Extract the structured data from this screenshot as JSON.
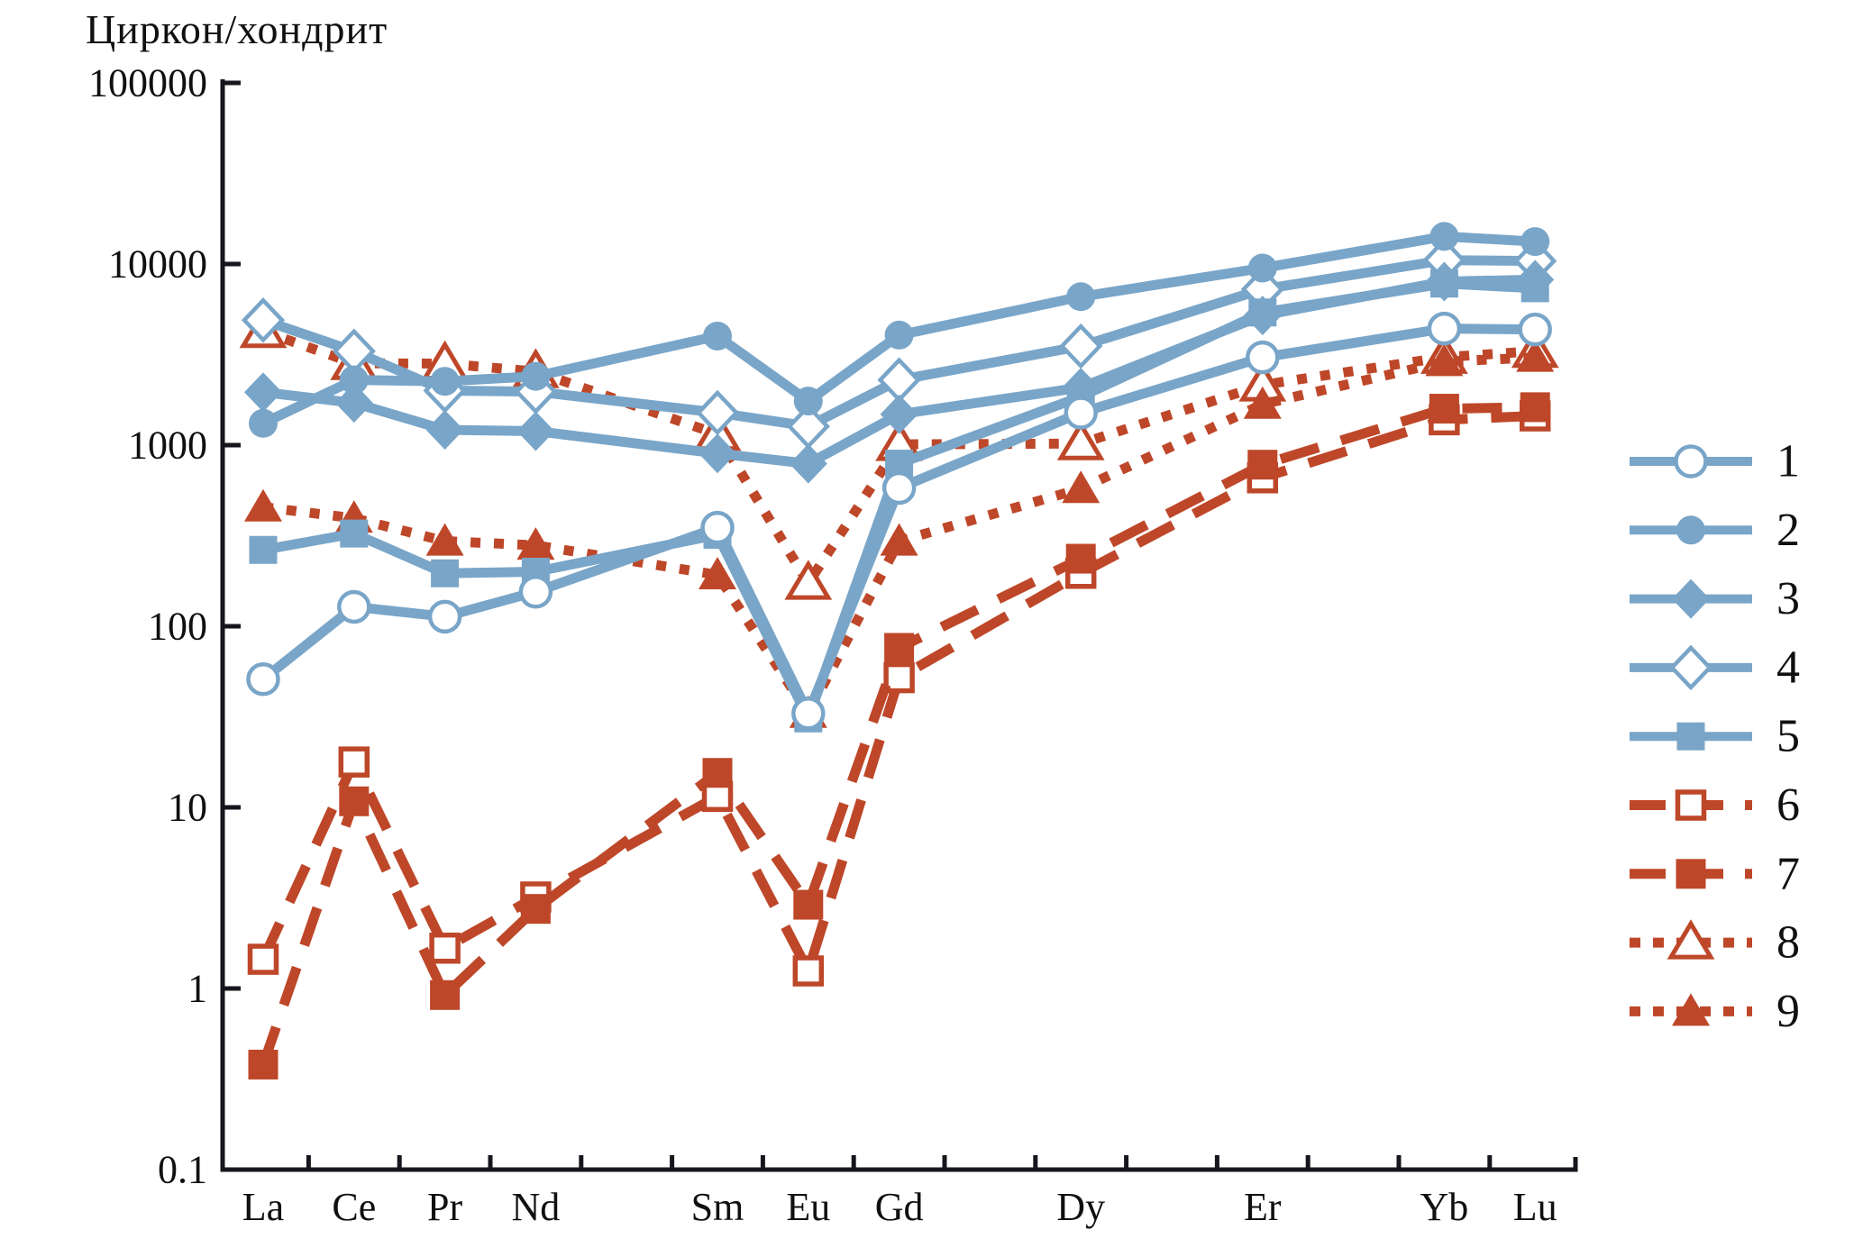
{
  "title": "Циркон/хондрит",
  "colors": {
    "blue": "#79A5C8",
    "red": "#BE4729",
    "axis": "#16161E",
    "text": "#101010",
    "background": "#FFFFFF"
  },
  "chart_data": {
    "type": "line",
    "title": "Циркон/хондрит",
    "y_scale": "log",
    "ylim": [
      0.1,
      100000
    ],
    "y_tick_labels": [
      "100000",
      "10000",
      "1000",
      "100",
      "10",
      "1",
      "0.1"
    ],
    "y_tick_values": [
      100000,
      10000,
      1000,
      100,
      10,
      1,
      0.1
    ],
    "x_categories": [
      "La",
      "Ce",
      "Pr",
      "Nd",
      "Sm",
      "Eu",
      "Gd",
      "Dy",
      "Er",
      "Yb",
      "Lu"
    ],
    "x_atomic_numbers": [
      57,
      58,
      59,
      60,
      62,
      63,
      64,
      66,
      68,
      70,
      71
    ],
    "grid": "off",
    "legend_position": "right",
    "legend_labels": [
      "1",
      "2",
      "3",
      "4",
      "5",
      "6",
      "7",
      "8",
      "9"
    ],
    "series": [
      {
        "name": "1",
        "color": "blue",
        "line": "solid",
        "marker": "circle-open",
        "values": [
          51,
          128,
          113,
          155,
          350,
          33,
          580,
          1510,
          3050,
          4400,
          4350
        ]
      },
      {
        "name": "2",
        "color": "blue",
        "line": "solid",
        "marker": "circle-fill",
        "values": [
          1320,
          2290,
          2250,
          2400,
          4000,
          1750,
          4050,
          6600,
          9500,
          14200,
          13300
        ]
      },
      {
        "name": "3",
        "color": "blue",
        "line": "solid",
        "marker": "diamond-fill",
        "values": [
          1960,
          1710,
          1215,
          1195,
          900,
          790,
          1480,
          2080,
          5200,
          8000,
          8200
        ]
      },
      {
        "name": "4",
        "color": "blue",
        "line": "solid",
        "marker": "diamond-open",
        "values": [
          4900,
          3300,
          2000,
          1975,
          1510,
          1270,
          2290,
          3520,
          7250,
          10500,
          10400
        ]
      },
      {
        "name": "5",
        "color": "blue",
        "line": "solid",
        "marker": "square-fill",
        "values": [
          264,
          325,
          196,
          200,
          320,
          31,
          790,
          1850,
          5400,
          7800,
          7350
        ]
      },
      {
        "name": "6",
        "color": "red",
        "line": "dashed",
        "marker": "square-open",
        "values": [
          1.45,
          17.8,
          1.67,
          3.2,
          11.5,
          1.25,
          52,
          196,
          660,
          1380,
          1450
        ]
      },
      {
        "name": "7",
        "color": "red",
        "line": "dashed",
        "marker": "square-fill",
        "values": [
          0.38,
          10.8,
          0.92,
          2.75,
          15.5,
          2.9,
          76,
          236,
          780,
          1590,
          1620
        ]
      },
      {
        "name": "8",
        "color": "red",
        "line": "dotted",
        "marker": "triangle-open",
        "values": [
          4250,
          2830,
          2820,
          2550,
          1150,
          173,
          1010,
          1020,
          2150,
          3060,
          3300
        ]
      },
      {
        "name": "9",
        "color": "red",
        "line": "dotted",
        "marker": "triangle-fill",
        "values": [
          455,
          395,
          295,
          280,
          192,
          33,
          295,
          575,
          1680,
          2890,
          3050
        ]
      }
    ]
  }
}
